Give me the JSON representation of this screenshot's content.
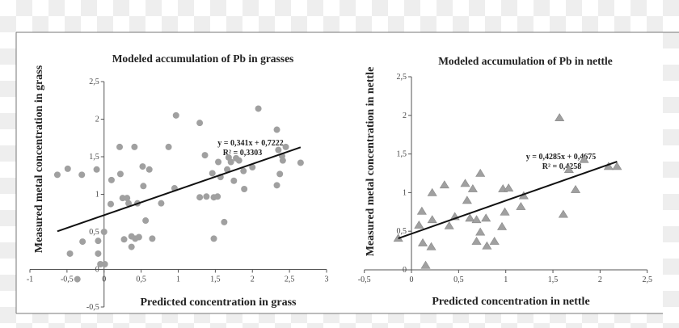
{
  "chart_data": [
    {
      "type": "scatter",
      "title": "Modeled accumulation of Pb in grasses",
      "xlabel": "Predicted concentration in grass",
      "ylabel": "Measured metal concentration in grass",
      "xlim": [
        -1,
        3
      ],
      "ylim": [
        -0.5,
        2.5
      ],
      "xticks": [
        "-1",
        "-0,5",
        "0",
        "0,5",
        "1",
        "1,5",
        "2",
        "2,5",
        "3"
      ],
      "yticks": [
        "-0,5",
        "0",
        "0,5",
        "1",
        "1,5",
        "2",
        "2,5"
      ],
      "marker": "circle",
      "marker_color": "#a0a0a0",
      "grid": false,
      "trendline": {
        "slope": 0.341,
        "intercept": 0.7222,
        "x_range": [
          -0.63,
          2.65
        ],
        "equation": "y = 0,341x + 0,7222",
        "r2": "R² = 0,3303"
      },
      "points": [
        [
          -0.63,
          1.26
        ],
        [
          -0.49,
          1.34
        ],
        [
          -0.3,
          1.26
        ],
        [
          -0.1,
          1.33
        ],
        [
          -0.46,
          0.21
        ],
        [
          -0.29,
          0.37
        ],
        [
          -0.36,
          -0.13
        ],
        [
          -0.08,
          0.38
        ],
        [
          -0.08,
          0.21
        ],
        [
          -0.05,
          0.07
        ],
        [
          0.01,
          0.07
        ],
        [
          0.0,
          0.5
        ],
        [
          0.09,
          0.87
        ],
        [
          0.1,
          1.19
        ],
        [
          0.21,
          1.63
        ],
        [
          0.22,
          1.27
        ],
        [
          0.25,
          0.95
        ],
        [
          0.31,
          0.95
        ],
        [
          0.33,
          0.88
        ],
        [
          0.45,
          0.88
        ],
        [
          0.41,
          1.63
        ],
        [
          0.27,
          0.4
        ],
        [
          0.37,
          0.44
        ],
        [
          0.42,
          0.41
        ],
        [
          0.47,
          0.43
        ],
        [
          0.37,
          0.3
        ],
        [
          0.52,
          1.37
        ],
        [
          0.53,
          1.11
        ],
        [
          0.61,
          1.33
        ],
        [
          0.56,
          0.65
        ],
        [
          0.65,
          0.41
        ],
        [
          0.77,
          0.88
        ],
        [
          0.87,
          1.63
        ],
        [
          0.97,
          2.05
        ],
        [
          0.95,
          1.08
        ],
        [
          1.29,
          1.95
        ],
        [
          1.29,
          0.96
        ],
        [
          1.38,
          0.97
        ],
        [
          1.36,
          1.52
        ],
        [
          1.46,
          1.28
        ],
        [
          1.48,
          0.96
        ],
        [
          1.53,
          0.97
        ],
        [
          1.48,
          0.41
        ],
        [
          1.54,
          1.43
        ],
        [
          1.57,
          1.23
        ],
        [
          1.62,
          0.63
        ],
        [
          1.66,
          1.33
        ],
        [
          1.68,
          1.49
        ],
        [
          1.71,
          1.43
        ],
        [
          1.75,
          1.18
        ],
        [
          1.78,
          1.48
        ],
        [
          1.82,
          1.45
        ],
        [
          1.88,
          1.31
        ],
        [
          1.89,
          1.07
        ],
        [
          2.0,
          1.36
        ],
        [
          2.08,
          2.14
        ],
        [
          2.33,
          1.86
        ],
        [
          2.35,
          1.59
        ],
        [
          2.37,
          1.27
        ],
        [
          2.33,
          1.12
        ],
        [
          2.4,
          1.51
        ],
        [
          2.41,
          1.45
        ],
        [
          2.45,
          1.63
        ],
        [
          2.65,
          1.42
        ]
      ]
    },
    {
      "type": "scatter",
      "title": "Modeled accumulation of Pb in nettle",
      "xlabel": "Predicted concentration in nettle",
      "ylabel": "Measured metal concentration in nettle",
      "xlim": [
        -0.5,
        2.5
      ],
      "ylim": [
        0,
        2.5
      ],
      "xticks": [
        "-0,5",
        "0",
        "0,5",
        "1",
        "1,5",
        "2",
        "2,5"
      ],
      "yticks": [
        "0",
        "0,5",
        "1",
        "1,5",
        "2",
        "2,5"
      ],
      "marker": "triangle",
      "marker_color": "#a0a0a0",
      "grid": false,
      "trendline": {
        "slope": 0.4285,
        "intercept": 0.4675,
        "x_range": [
          -0.14,
          2.18
        ],
        "equation": "y = 0,4285x + 0,4675",
        "r2": "R² = 0,4258"
      },
      "points": [
        [
          -0.14,
          0.41
        ],
        [
          0.08,
          0.58
        ],
        [
          0.11,
          0.76
        ],
        [
          0.12,
          0.35
        ],
        [
          0.15,
          0.06
        ],
        [
          0.21,
          0.3
        ],
        [
          0.22,
          1.0
        ],
        [
          0.22,
          0.65
        ],
        [
          0.35,
          1.1
        ],
        [
          0.4,
          0.57
        ],
        [
          0.46,
          0.69
        ],
        [
          0.57,
          1.12
        ],
        [
          0.59,
          0.9
        ],
        [
          0.62,
          0.67
        ],
        [
          0.65,
          1.05
        ],
        [
          0.69,
          0.65
        ],
        [
          0.69,
          0.37
        ],
        [
          0.73,
          1.25
        ],
        [
          0.73,
          0.49
        ],
        [
          0.79,
          0.67
        ],
        [
          0.8,
          0.31
        ],
        [
          0.88,
          0.37
        ],
        [
          0.96,
          0.56
        ],
        [
          0.97,
          1.05
        ],
        [
          0.99,
          0.75
        ],
        [
          1.03,
          1.06
        ],
        [
          1.16,
          0.82
        ],
        [
          1.19,
          0.96
        ],
        [
          1.57,
          1.97
        ],
        [
          1.61,
          0.72
        ],
        [
          1.67,
          1.3
        ],
        [
          1.74,
          1.04
        ],
        [
          1.83,
          1.43
        ],
        [
          2.09,
          1.34
        ],
        [
          2.18,
          1.34
        ]
      ]
    }
  ]
}
